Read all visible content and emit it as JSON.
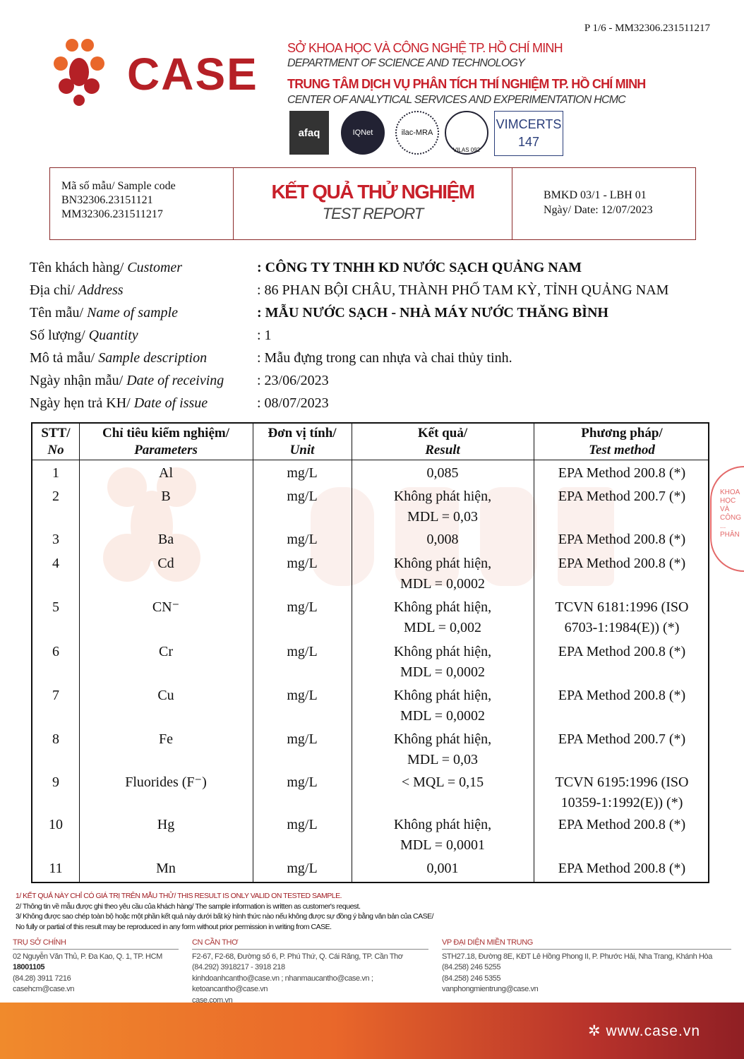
{
  "page_number": "P 1/6 - MM32306.231511217",
  "logo": {
    "text": "CASE",
    "colors": [
      "#e9672a",
      "#b52026"
    ]
  },
  "org": {
    "line1": "SỞ KHOA HỌC VÀ CÔNG NGHỆ TP. HỒ CHÍ MINH",
    "line2": "DEPARTMENT OF SCIENCE AND TECHNOLOGY",
    "line3": "TRUNG TÂM DỊCH VỤ PHÂN TÍCH THÍ NGHIỆM TP. HỒ CHÍ MINH",
    "line4": "CENTER OF ANALYTICAL SERVICES AND EXPERIMENTATION HCMC"
  },
  "certs": {
    "afaq": "afaq",
    "iqnet": "IQNet",
    "ilac": "ilac-MRA",
    "vilas": "VILAS 092",
    "vimcerts": "VIMCERTS",
    "vimcerts_no": "147"
  },
  "header_box": {
    "sample_code_label": "Mã số mẫu/ Sample code",
    "code1": "BN32306.23151121",
    "code2": "MM32306.231511217",
    "title_vn": "KẾT QUẢ THỬ NGHIỆM",
    "title_en": "TEST REPORT",
    "form": "BMKD 03/1 - LBH 01",
    "date": "Ngày/ Date: 12/07/2023"
  },
  "info": [
    {
      "label": "Tên khách hàng/ ",
      "label_en": "Customer",
      "value": ": CÔNG TY TNHH KD NƯỚC SẠCH QUẢNG NAM",
      "bold": true
    },
    {
      "label": "Địa chỉ/ ",
      "label_en": "Address",
      "value": ": 86 PHAN BỘI CHÂU, THÀNH PHỐ TAM KỲ, TỈNH QUẢNG NAM",
      "bold": false
    },
    {
      "label": "Tên mẫu/ ",
      "label_en": "Name of sample",
      "value": ": MẪU NƯỚC SẠCH - NHÀ MÁY NƯỚC THĂNG BÌNH",
      "bold": true
    },
    {
      "label": "Số lượng/ ",
      "label_en": "Quantity",
      "value": ": 1",
      "bold": false
    },
    {
      "label": "Mô tả mẫu/ ",
      "label_en": "Sample description",
      "value": ": Mẫu đựng trong can nhựa và chai thủy tinh.",
      "bold": false
    },
    {
      "label": "Ngày nhận mẫu/ ",
      "label_en": "Date of receiving",
      "value": ": 23/06/2023",
      "bold": false
    },
    {
      "label": "Ngày hẹn trả KH/ ",
      "label_en": "Date of issue",
      "value": ": 08/07/2023",
      "bold": false
    }
  ],
  "table": {
    "headers": [
      {
        "vn": "STT/",
        "en": "No"
      },
      {
        "vn": "Chỉ tiêu kiểm nghiệm/",
        "en": "Parameters"
      },
      {
        "vn": "Đơn vị tính/",
        "en": "Unit"
      },
      {
        "vn": "Kết quả/",
        "en": "Result"
      },
      {
        "vn": "Phương pháp/",
        "en": "Test method"
      }
    ],
    "rows": [
      {
        "no": "1",
        "param": "Al",
        "unit": "mg/L",
        "result": "0,085",
        "method": "EPA Method 200.8 (*)"
      },
      {
        "no": "2",
        "param": "B",
        "unit": "mg/L",
        "result": "Không phát hiện,\nMDL = 0,03",
        "method": "EPA Method 200.7 (*)"
      },
      {
        "no": "3",
        "param": "Ba",
        "unit": "mg/L",
        "result": "0,008",
        "method": "EPA Method 200.8 (*)"
      },
      {
        "no": "4",
        "param": "Cd",
        "unit": "mg/L",
        "result": "Không phát hiện,\nMDL = 0,0002",
        "method": "EPA Method 200.8 (*)"
      },
      {
        "no": "5",
        "param": "CN⁻",
        "unit": "mg/L",
        "result": "Không phát hiện,\nMDL = 0,002",
        "method": "TCVN 6181:1996 (ISO\n6703-1:1984(E)) (*)"
      },
      {
        "no": "6",
        "param": "Cr",
        "unit": "mg/L",
        "result": "Không phát hiện,\nMDL = 0,0002",
        "method": "EPA Method 200.8 (*)"
      },
      {
        "no": "7",
        "param": "Cu",
        "unit": "mg/L",
        "result": "Không phát hiện,\nMDL = 0,0002",
        "method": "EPA Method 200.8 (*)"
      },
      {
        "no": "8",
        "param": "Fe",
        "unit": "mg/L",
        "result": "Không phát hiện,\nMDL = 0,03",
        "method": "EPA Method 200.7 (*)"
      },
      {
        "no": "9",
        "param": "Fluorides (F⁻)",
        "unit": "mg/L",
        "result": "< MQL = 0,15",
        "method": "TCVN 6195:1996 (ISO\n10359-1:1992(E)) (*)"
      },
      {
        "no": "10",
        "param": "Hg",
        "unit": "mg/L",
        "result": "Không phát hiện,\nMDL = 0,0001",
        "method": "EPA Method 200.8 (*)"
      },
      {
        "no": "11",
        "param": "Mn",
        "unit": "mg/L",
        "result": "0,001",
        "method": "EPA Method 200.8 (*)"
      }
    ]
  },
  "stamp": {
    "text": "KHOA HỌC VÀ CÔNG ... PHÂN"
  },
  "notes": [
    "1/ KẾT QUẢ NÀY CHỈ CÓ GIÁ TRỊ TRÊN MẪU THỬ/ THIS RESULT IS ONLY VALID ON TESTED SAMPLE.",
    "2/ Thông tin về mẫu được ghi theo yêu cầu của khách hàng/ The sample information is written as customer's request.",
    "3/ Không được sao chép toàn bộ hoặc một phần kết quả này dưới bất kỳ hình thức nào nếu không được sự đồng ý bằng văn bản của CASE/",
    "No fully or partial of this result may be reproduced in any form without prior permission in writing from CASE."
  ],
  "offices": [
    {
      "title": "TRỤ SỞ CHÍNH",
      "lines": [
        "02 Nguyễn Văn Thủ, P. Đa Kao, Q. 1, TP. HCM",
        "18001105",
        "(84.28) 3911 7216",
        "casehcm@case.vn"
      ]
    },
    {
      "title": "CN CẦN THƠ",
      "lines": [
        "F2-67, F2-68, Đường số 6, P. Phú Thứ, Q. Cái Răng, TP. Cần Thơ",
        "(84.292) 3918217 - 3918 218",
        "kinhdoanhcantho@case.vn ; nhanmaucantho@case.vn ;",
        "ketoancantho@case.vn",
        "case.com.vn"
      ]
    },
    {
      "title": "VP ĐẠI DIỆN MIỀN TRUNG",
      "lines": [
        "STH27.18, Đường 8E, KĐT Lê Hồng Phong II, P. Phước Hải, Nha Trang, Khánh Hòa",
        "(84.258) 246 5255",
        "(84.258) 246 5355",
        "vanphongmientrung@case.vn"
      ]
    }
  ],
  "website": "www.case.vn"
}
